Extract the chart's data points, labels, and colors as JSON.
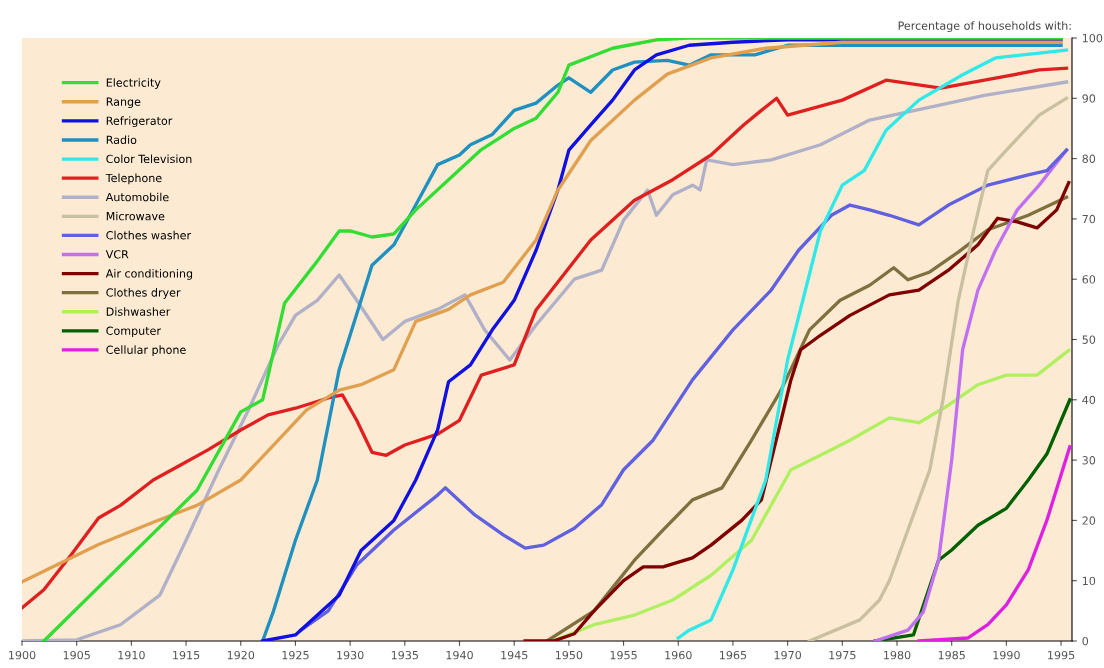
{
  "chart_data": {
    "type": "line",
    "ylabel": "Percentage of households with:",
    "xlim": [
      1900,
      1996
    ],
    "ylim": [
      0,
      100
    ],
    "xticks": [
      1900,
      1905,
      1910,
      1915,
      1920,
      1925,
      1930,
      1935,
      1940,
      1945,
      1950,
      1955,
      1960,
      1965,
      1970,
      1975,
      1980,
      1985,
      1990,
      1995
    ],
    "yticks": [
      0,
      10,
      20,
      30,
      40,
      50,
      60,
      70,
      80,
      90,
      100
    ],
    "grid": false,
    "legend": "top left",
    "series": [
      {
        "name": "Electricity",
        "color": "#33dd33",
        "x": [
          1902,
          1916,
          1920,
          1922,
          1924,
          1927,
          1929,
          1930,
          1932,
          1934,
          1936,
          1939,
          1942,
          1945,
          1947,
          1949,
          1950,
          1954,
          1958,
          1961,
          1995
        ],
        "values": [
          0,
          25,
          38,
          40,
          56,
          63,
          68,
          68,
          67,
          67.5,
          71.5,
          76.5,
          81.5,
          85,
          86.7,
          91,
          95.5,
          98.3,
          99.7,
          100,
          100
        ]
      },
      {
        "name": "Range",
        "color": "#e0a050",
        "x": [
          1900,
          1907,
          1912,
          1916,
          1920,
          1923,
          1926,
          1929,
          1931,
          1934,
          1936,
          1939,
          1941,
          1944,
          1947,
          1949,
          1952,
          1956,
          1959,
          1963,
          1968,
          1975,
          1995
        ],
        "values": [
          9.8,
          16,
          19.7,
          22.5,
          26.7,
          32.5,
          38.3,
          41.6,
          42.5,
          45,
          53,
          55,
          57.4,
          59.5,
          66.5,
          74.8,
          83,
          89.7,
          94,
          96.7,
          98.3,
          99.3,
          99.3
        ]
      },
      {
        "name": "Refrigerator",
        "color": "#1010e0",
        "x": [
          1922,
          1925,
          1929,
          1931,
          1934,
          1936,
          1938,
          1939,
          1941,
          1943,
          1945,
          1947,
          1949,
          1950,
          1952,
          1954,
          1956,
          1958,
          1961,
          1965,
          1970,
          1995
        ],
        "values": [
          0,
          1,
          7.6,
          15,
          20,
          26.7,
          35,
          43,
          45.8,
          51.6,
          56.5,
          64.8,
          74.8,
          81.4,
          85.6,
          89.7,
          94.7,
          97.2,
          98.8,
          99.3,
          99.7,
          99.7
        ]
      },
      {
        "name": "Radio",
        "color": "#2090c0",
        "x": [
          1922,
          1923,
          1925,
          1927,
          1929,
          1931,
          1932,
          1934,
          1936,
          1938,
          1940,
          1941,
          1943,
          1945,
          1947,
          1949,
          1950,
          1952,
          1954,
          1956,
          1959,
          1961,
          1963,
          1967,
          1970,
          1995
        ],
        "values": [
          0,
          5,
          16.7,
          26.7,
          45,
          56.5,
          62.3,
          65.7,
          72.3,
          79,
          80.6,
          82.3,
          84,
          88,
          89.2,
          92.2,
          93.4,
          91,
          94.7,
          96,
          96.3,
          95.5,
          97.2,
          97.2,
          98.8,
          98.8
        ]
      },
      {
        "name": "Color Television",
        "color": "#30e8e8",
        "x": [
          1960,
          1961,
          1963,
          1965,
          1968,
          1970,
          1973,
          1975,
          1977,
          1979,
          1982,
          1986,
          1989,
          1993,
          1995.5
        ],
        "values": [
          0.5,
          1.8,
          3.5,
          11.8,
          26.7,
          46.6,
          68,
          75.6,
          78,
          84.7,
          89.7,
          93.9,
          96.7,
          97.5,
          98
        ]
      },
      {
        "name": "Telephone",
        "color": "#e02020",
        "x": [
          1900,
          1902,
          1904.5,
          1907,
          1909,
          1912,
          1914.5,
          1917,
          1920,
          1922.5,
          1925,
          1928,
          1929.3,
          1930.6,
          1932,
          1933.3,
          1935,
          1938,
          1940,
          1942,
          1945,
          1947,
          1949.5,
          1952,
          1956,
          1959.5,
          1963,
          1966,
          1967.6,
          1969,
          1970,
          1975,
          1979,
          1984,
          1988,
          1993,
          1995.5
        ],
        "values": [
          5.5,
          8.5,
          14.3,
          20.4,
          22.5,
          26.7,
          29.2,
          31.7,
          35,
          37.5,
          38.6,
          40.3,
          40.8,
          36.6,
          31.3,
          30.8,
          32.5,
          34.3,
          36.6,
          44.1,
          45.8,
          54.9,
          60.7,
          66.5,
          73.1,
          76.5,
          80.6,
          85.6,
          88,
          90,
          87.2,
          89.7,
          93,
          91.7,
          93,
          94.7,
          95
        ]
      },
      {
        "name": "Automobile",
        "color": "#b0b0c8",
        "x": [
          1900,
          1905,
          1909,
          1912.6,
          1915,
          1918,
          1920.7,
          1923.4,
          1925,
          1927,
          1929,
          1930.6,
          1933,
          1935,
          1938,
          1940.5,
          1942.3,
          1944.6,
          1947,
          1950.5,
          1953,
          1955,
          1957.2,
          1958,
          1959.5,
          1961.3,
          1962,
          1962.6,
          1965,
          1968.5,
          1973,
          1977.5,
          1984,
          1988,
          1995.5
        ],
        "values": [
          0,
          0.2,
          2.7,
          7.6,
          16.7,
          28.4,
          38.3,
          49,
          54,
          56.5,
          60.7,
          56.5,
          50,
          53,
          55,
          57.4,
          51.6,
          46.6,
          52.4,
          60,
          61.5,
          69.8,
          74.8,
          70.6,
          74,
          75.6,
          74.8,
          79.8,
          79,
          79.8,
          82.3,
          86.4,
          88.9,
          90.5,
          92.7
        ]
      },
      {
        "name": "Microwave",
        "color": "#c8c0a0",
        "x": [
          1972,
          1976.6,
          1978.4,
          1979.3,
          1981,
          1983,
          1984.2,
          1985.6,
          1987,
          1988.3,
          1990,
          1993,
          1995.5
        ],
        "values": [
          0,
          3.5,
          6.8,
          10,
          18.4,
          28.4,
          40,
          56.5,
          68,
          78,
          81.4,
          87.2,
          90
        ]
      },
      {
        "name": "Clothes washer",
        "color": "#6060e0",
        "x": [
          1925.5,
          1928,
          1930.6,
          1934,
          1938,
          1938.7,
          1941.4,
          1944,
          1946,
          1947.7,
          1950.5,
          1953,
          1955,
          1957.7,
          1961.3,
          1965,
          1968.5,
          1971,
          1974,
          1975.7,
          1977.5,
          1979.3,
          1982,
          1984.7,
          1988.3,
          1992,
          1993.7,
          1995.5
        ],
        "values": [
          1.8,
          5,
          12.6,
          18.4,
          24.2,
          25.4,
          20.9,
          17.6,
          15.4,
          15.9,
          18.7,
          22.6,
          28.4,
          33.3,
          43.3,
          51.6,
          58.2,
          64.8,
          70.6,
          72.3,
          71.5,
          70.6,
          69,
          72.3,
          75.6,
          77.3,
          78,
          81.4
        ]
      },
      {
        "name": "VCR",
        "color": "#c070f0",
        "x": [
          1978,
          1981,
          1982.4,
          1983.8,
          1985,
          1986,
          1987.4,
          1989,
          1991,
          1993,
          1995.5
        ],
        "values": [
          0,
          1.8,
          4.8,
          13.4,
          30,
          48.3,
          58.2,
          64.8,
          71.5,
          75.6,
          81.4
        ]
      },
      {
        "name": "Air conditioning",
        "color": "#800000",
        "x": [
          1946,
          1948.6,
          1950.5,
          1952.3,
          1955,
          1956.8,
          1958.6,
          1961.3,
          1963,
          1965.8,
          1967.6,
          1969.4,
          1970.3,
          1971.2,
          1973,
          1975.7,
          1979.3,
          1982,
          1984.7,
          1987.4,
          1989.2,
          1991,
          1992.8,
          1994.6,
          1995.7
        ],
        "values": [
          0,
          0,
          1.2,
          5,
          10,
          12.3,
          12.3,
          13.8,
          15.9,
          20,
          23.4,
          36.6,
          43.3,
          48.3,
          50.7,
          54,
          57.4,
          58.2,
          61.5,
          65.7,
          70.1,
          69.5,
          68.5,
          71.5,
          76
        ]
      },
      {
        "name": "Clothes dryer",
        "color": "#807040",
        "x": [
          1948,
          1952.3,
          1956,
          1958.6,
          1961.3,
          1964,
          1966.7,
          1969.4,
          1972,
          1974.8,
          1977.5,
          1979.7,
          1981,
          1983,
          1985.6,
          1988.3,
          1992,
          1995.5
        ],
        "values": [
          0,
          5,
          13.4,
          18.4,
          23.4,
          25.4,
          33.3,
          41.6,
          51.6,
          56.5,
          59,
          61.9,
          59.9,
          61.2,
          64.5,
          68.2,
          70.6,
          73.6
        ]
      },
      {
        "name": "Dishwasher",
        "color": "#b0f060",
        "x": [
          1948.5,
          1952.3,
          1956,
          1959.5,
          1963,
          1966.7,
          1970.3,
          1973,
          1975.7,
          1979.3,
          1982,
          1984.7,
          1987.4,
          1990,
          1992.8,
          1995.7
        ],
        "values": [
          0,
          2.7,
          4.3,
          6.8,
          10.9,
          16.7,
          28.4,
          30.8,
          33.3,
          37,
          36.2,
          39.1,
          42.5,
          44.1,
          44.1,
          48.2
        ]
      },
      {
        "name": "Computer",
        "color": "#006000",
        "x": [
          1978,
          1981.5,
          1983.8,
          1985,
          1987.4,
          1990,
          1992,
          1993.7,
          1995.8
        ],
        "values": [
          0,
          1,
          13.4,
          15.1,
          19.2,
          22,
          26.7,
          31,
          40
        ]
      },
      {
        "name": "Cellular phone",
        "color": "#e020e0",
        "x": [
          1982,
          1986.5,
          1988.3,
          1990,
          1992,
          1993.7,
          1995.8
        ],
        "values": [
          0,
          0.5,
          2.7,
          6,
          11.8,
          20,
          32.2
        ]
      }
    ]
  }
}
